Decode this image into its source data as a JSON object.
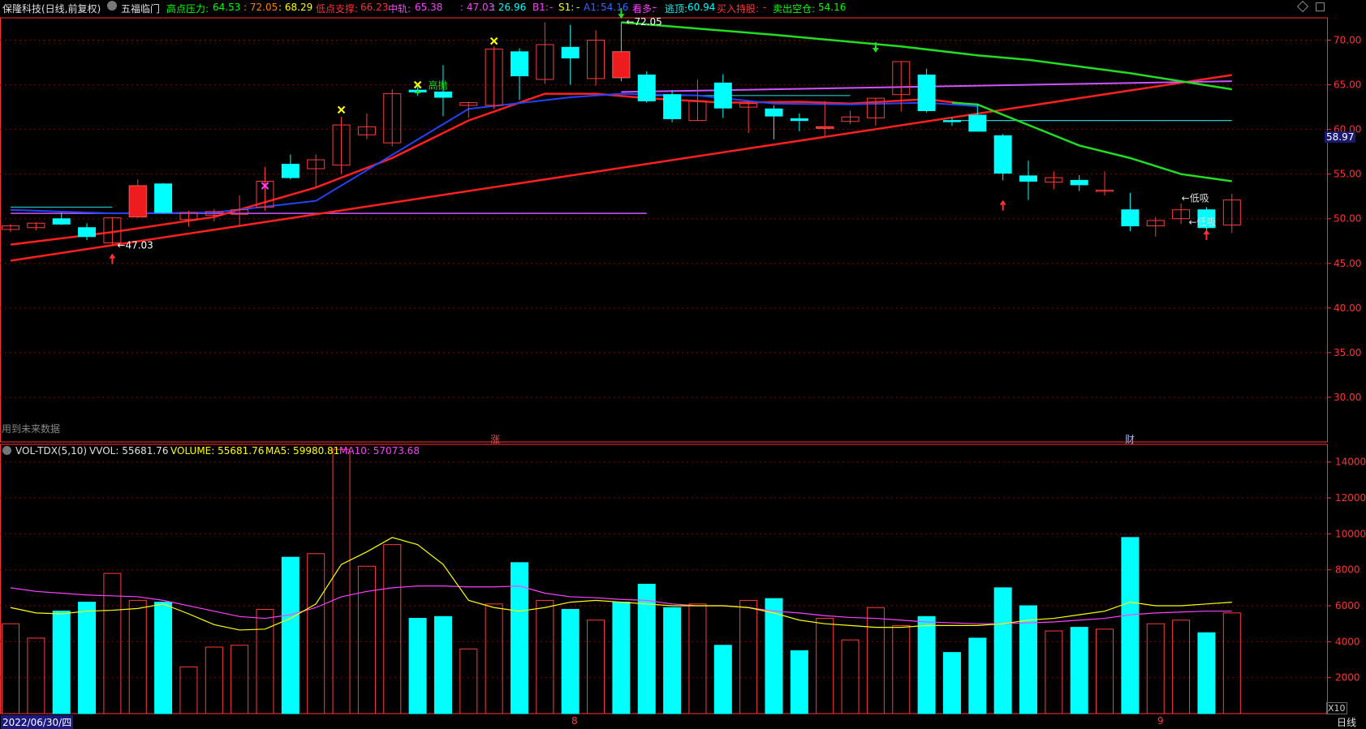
{
  "stock_title": "保隆科技(日线,前复权)",
  "indicator_name": "五福临门",
  "indicators": [
    {
      "label": "高点压力:",
      "color": "#00ff00"
    },
    {
      "label": "64.53",
      "color": "#00ff00"
    },
    {
      "label": ": 72.05",
      "color": "#ff8000"
    },
    {
      "label": ": 68.29",
      "color": "#ffff00"
    },
    {
      "label": "低点支撑:",
      "color": "#ff3333"
    },
    {
      "label": "66.23",
      "color": "#ff3333"
    },
    {
      "label": "中轨:",
      "color": "#ff40ff"
    },
    {
      "label": "65.38",
      "color": "#ff40ff"
    },
    {
      "label": ": 47.03",
      "color": "#ff40ff"
    },
    {
      "label": ": 26.96",
      "color": "#00ffff"
    },
    {
      "label": "B1:",
      "color": "#ff40ff"
    },
    {
      "label": "-",
      "color": "#ff40ff"
    },
    {
      "label": "S1:",
      "color": "#ffff00"
    },
    {
      "label": "-",
      "color": "#ffff00"
    },
    {
      "label": "A1:",
      "color": "#3366ff"
    },
    {
      "label": "54.16",
      "color": "#3366ff"
    },
    {
      "label": "看多:",
      "color": "#ff40ff"
    },
    {
      "label": "-",
      "color": "#ff40ff"
    },
    {
      "label": "逃顶:",
      "color": "#00ffff"
    },
    {
      "label": "60.94",
      "color": "#00ffff"
    },
    {
      "label": "买入持股:",
      "color": "#ff3333"
    },
    {
      "label": "-",
      "color": "#ff3333"
    },
    {
      "label": "卖出空仓:",
      "color": "#00ff00"
    },
    {
      "label": "54.16",
      "color": "#00ff00"
    }
  ],
  "vol_header": {
    "name": "VOL-TDX(5,10)",
    "vvol": "VVOL: 55681.76",
    "volume": "VOLUME: 55681.76",
    "ma5": "MA5: 59980.81",
    "ma10": "MA10: 57073.68"
  },
  "future_data_note": "用到未来数据",
  "marker_zhang": "涨",
  "marker_cai": "财",
  "date_label": "2022/06/30/四",
  "month_8": "8",
  "month_9": "9",
  "period_label": "日线",
  "x10_label": "X10",
  "current_price": "58.97",
  "annotations": {
    "high": "72.05",
    "low": "47.03",
    "gaopao": "高抛",
    "dixi1": "低吸",
    "dixi2": "低吸"
  },
  "colors": {
    "up": "#ff3c3c",
    "down": "#00ffff",
    "grid": "#8b0000",
    "axis": "#ff3333",
    "ma_red": "#ff2020",
    "ma_green": "#22dd22",
    "ma_purple": "#cc55ff",
    "ma_blue": "#2244ff",
    "vol_ma5": "#ffff00",
    "vol_ma10": "#ff40ff"
  },
  "chart_data": [
    {
      "type": "candlestick",
      "ylim": [
        25,
        72.5
      ],
      "yticks": [
        "70.00",
        "65.00",
        "60.00",
        "55.00",
        "50.00",
        "45.00",
        "40.00",
        "35.00",
        "30.00"
      ],
      "candles": [
        [
          48.8,
          49.4,
          48.5,
          49.2
        ],
        [
          49.0,
          49.6,
          48.7,
          49.5
        ],
        [
          50.0,
          50.7,
          49.3,
          49.4
        ],
        [
          49.0,
          49.5,
          47.6,
          48.0
        ],
        [
          47.3,
          50.1,
          47.0,
          50.1
        ],
        [
          50.2,
          54.4,
          50.1,
          53.7
        ],
        [
          53.9,
          54.0,
          50.6,
          50.7
        ],
        [
          49.9,
          50.9,
          49.1,
          50.7
        ],
        [
          50.4,
          51.1,
          49.7,
          50.8
        ],
        [
          50.5,
          52.6,
          49.3,
          51.0
        ],
        [
          51.3,
          55.8,
          50.9,
          54.2
        ],
        [
          56.1,
          57.2,
          54.4,
          54.6
        ],
        [
          55.6,
          57.2,
          53.6,
          56.6
        ],
        [
          56.0,
          61.4,
          55.0,
          60.5
        ],
        [
          59.4,
          61.8,
          58.9,
          60.3
        ],
        [
          58.5,
          64.5,
          58.1,
          64.0
        ],
        [
          64.4,
          64.8,
          63.8,
          64.2
        ],
        [
          64.2,
          67.2,
          61.5,
          63.6
        ],
        [
          62.7,
          63.1,
          61.3,
          63.0
        ],
        [
          62.7,
          69.3,
          62.3,
          69.0
        ],
        [
          68.7,
          69.1,
          63.3,
          66.0
        ],
        [
          65.6,
          72.0,
          65.1,
          69.5
        ],
        [
          69.2,
          71.7,
          65.0,
          68.0
        ],
        [
          65.7,
          71.1,
          64.9,
          70.0
        ],
        [
          68.7,
          72.0,
          65.4,
          65.8
        ],
        [
          66.1,
          66.5,
          63.0,
          63.2
        ],
        [
          63.9,
          64.4,
          60.8,
          61.2
        ],
        [
          61.0,
          65.6,
          61.0,
          63.2
        ],
        [
          65.2,
          66.2,
          61.3,
          62.4
        ],
        [
          62.5,
          63.2,
          59.6,
          62.9
        ],
        [
          62.3,
          62.7,
          58.9,
          61.5
        ],
        [
          61.2,
          61.8,
          59.8,
          61.0
        ],
        [
          60.2,
          63.2,
          59.3,
          60.3
        ],
        [
          60.9,
          62.1,
          60.6,
          61.4
        ],
        [
          61.3,
          63.5,
          60.4,
          63.5
        ],
        [
          63.9,
          67.6,
          62.0,
          67.6
        ],
        [
          66.1,
          66.8,
          61.9,
          62.1
        ],
        [
          61.0,
          61.3,
          60.4,
          60.9
        ],
        [
          61.6,
          62.9,
          59.9,
          59.8
        ],
        [
          59.3,
          59.5,
          54.3,
          55.1
        ],
        [
          54.8,
          56.5,
          52.1,
          54.2
        ],
        [
          54.1,
          55.3,
          53.3,
          54.6
        ],
        [
          54.3,
          54.9,
          53.1,
          53.8
        ],
        [
          53.2,
          55.3,
          52.6,
          53.2
        ],
        [
          51.0,
          52.9,
          48.6,
          49.2
        ],
        [
          49.2,
          50.2,
          48.0,
          49.8
        ],
        [
          50.0,
          51.7,
          49.4,
          51.0
        ],
        [
          51.0,
          51.3,
          48.1,
          49.0
        ],
        [
          49.3,
          52.8,
          48.4,
          52.1
        ]
      ],
      "ma_red_long": {
        "from": [
          0,
          45.3
        ],
        "to": [
          48,
          66.1
        ]
      },
      "ma_red_mid": [
        [
          0,
          47.1
        ],
        [
          4,
          48.5
        ],
        [
          8,
          50.2
        ],
        [
          12,
          53.5
        ],
        [
          15,
          56.8
        ],
        [
          18,
          61.0
        ],
        [
          21,
          64.0
        ],
        [
          23,
          64.0
        ],
        [
          25,
          63.5
        ],
        [
          28,
          63.0
        ],
        [
          31,
          63.1
        ],
        [
          33,
          62.9
        ],
        [
          36,
          63.4
        ],
        [
          38,
          62.7
        ]
      ],
      "ma_green": [
        [
          24,
          72.0
        ],
        [
          30,
          70.6
        ],
        [
          35,
          69.3
        ],
        [
          38,
          68.3
        ],
        [
          40,
          67.8
        ],
        [
          44,
          66.3
        ],
        [
          48,
          64.5
        ]
      ],
      "ma_green_low": [
        [
          37,
          63.0
        ],
        [
          38,
          62.8
        ],
        [
          40,
          60.5
        ],
        [
          42,
          58.2
        ],
        [
          44,
          56.8
        ],
        [
          46,
          55.0
        ],
        [
          48,
          54.2
        ]
      ],
      "ma_purple": {
        "from": [
          24,
          64.2
        ],
        "to": [
          48,
          65.4
        ]
      },
      "ma_purple_low": {
        "from": [
          0,
          50.6
        ],
        "to": [
          25,
          50.6
        ]
      },
      "ma_blue": [
        [
          0,
          51.0
        ],
        [
          4,
          50.6
        ],
        [
          8,
          50.7
        ],
        [
          12,
          52.0
        ],
        [
          18,
          62.3
        ],
        [
          22,
          63.6
        ],
        [
          24,
          64.0
        ],
        [
          27,
          63.8
        ],
        [
          30,
          62.9
        ],
        [
          33,
          62.8
        ],
        [
          36,
          63.0
        ],
        [
          38,
          62.6
        ]
      ],
      "cyan_lines": [
        {
          "from": [
            0,
            51.3
          ],
          "to": [
            4,
            51.3
          ]
        },
        {
          "from": [
            25,
            63.8
          ],
          "to": [
            33,
            63.8
          ]
        },
        {
          "from": [
            37,
            61.0
          ],
          "to": [
            48,
            61.0
          ]
        }
      ]
    },
    {
      "type": "bar",
      "ylim": [
        0,
        14800
      ],
      "yticks": [
        "14000",
        "12000",
        "10000",
        "8000",
        "6000",
        "4000",
        "2000"
      ],
      "volumes": [
        5000,
        4200,
        5700,
        6200,
        7800,
        6300,
        6200,
        2600,
        3700,
        3800,
        5800,
        8700,
        8900,
        14700,
        8200,
        9400,
        5300,
        5400,
        3600,
        6100,
        8400,
        6300,
        5800,
        5200,
        6200,
        7200,
        5900,
        6100,
        3800,
        6300,
        6400,
        3500,
        5300,
        4100,
        5900,
        4900,
        5400,
        3400,
        4200,
        7000,
        6000,
        4600,
        4800,
        4700,
        9800,
        5000,
        5200,
        4500,
        5600
      ],
      "vol_ma5": [
        5900,
        5600,
        5550,
        5700,
        5750,
        5850,
        6100,
        5550,
        4950,
        4650,
        4700,
        5300,
        6100,
        8300,
        9000,
        9800,
        9400,
        8300,
        6300,
        5900,
        5700,
        5900,
        6200,
        6300,
        6200,
        6100,
        6000,
        6000,
        6000,
        5900,
        5600,
        5200,
        5000,
        4900,
        4800,
        4800,
        4900,
        4900,
        4900,
        5000,
        5200,
        5300,
        5500,
        5700,
        6200,
        6000,
        6000,
        6100,
        6200
      ],
      "vol_ma10": [
        7000,
        6800,
        6700,
        6600,
        6550,
        6500,
        6300,
        6000,
        5700,
        5400,
        5300,
        5500,
        5900,
        6500,
        6800,
        7000,
        7100,
        7100,
        7050,
        7050,
        7100,
        6700,
        6500,
        6450,
        6350,
        6300,
        6100,
        6000,
        6000,
        5900,
        5700,
        5600,
        5450,
        5350,
        5300,
        5200,
        5100,
        5050,
        5000,
        5000,
        5050,
        5100,
        5200,
        5300,
        5500,
        5600,
        5650,
        5700,
        5700
      ]
    }
  ]
}
